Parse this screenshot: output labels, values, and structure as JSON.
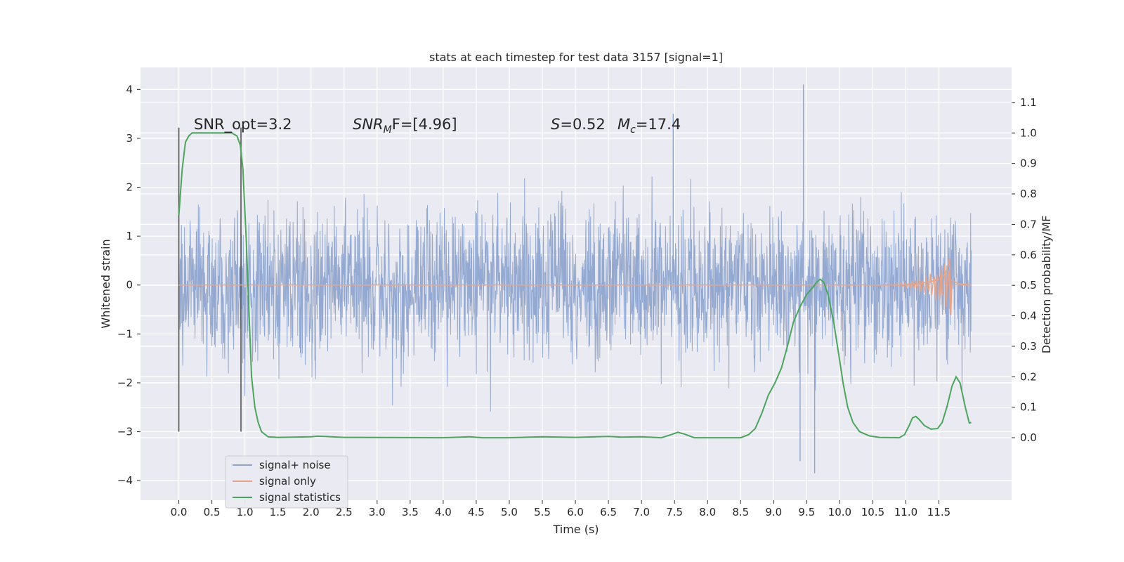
{
  "chart_data": {
    "type": "line",
    "title": "stats at each timestep for test data 3157 [signal=1]",
    "xlabel": "Time (s)",
    "ylabel": "Whitened strain",
    "ylabel_right": "Detection probability/MF",
    "xlim": [
      -0.58,
      12.6
    ],
    "ylim": [
      -4.4,
      4.45
    ],
    "ylim_right": [
      -0.205,
      1.215
    ],
    "x_ticks": [
      0.0,
      0.5,
      1.0,
      1.5,
      2.0,
      2.5,
      3.0,
      3.5,
      4.0,
      4.5,
      5.0,
      5.5,
      6.0,
      6.5,
      7.0,
      7.5,
      8.0,
      8.5,
      9.0,
      9.5,
      10.0,
      10.5,
      11.0,
      11.5
    ],
    "x_tick_labels": [
      "0.0",
      "0.5",
      "1.0",
      "1.5",
      "2.0",
      "2.5",
      "3.0",
      "3.5",
      "4.0",
      "4.5",
      "5.0",
      "5.5",
      "6.0",
      "6.5",
      "7.0",
      "7.5",
      "8.0",
      "8.5",
      "9.0",
      "9.5",
      "10.0",
      "10.5",
      "11.0",
      "11.5"
    ],
    "y_ticks": [
      -4,
      -3,
      -2,
      -1,
      0,
      1,
      2,
      3,
      4
    ],
    "y_tick_labels": [
      "−4",
      "−3",
      "−2",
      "−1",
      "0",
      "1",
      "2",
      "3",
      "4"
    ],
    "y_ticks_right": [
      0.0,
      0.1,
      0.2,
      0.3,
      0.4,
      0.5,
      0.6,
      0.7,
      0.8,
      0.9,
      1.0,
      1.1
    ],
    "y_tick_labels_right": [
      "0.0",
      "0.1",
      "0.2",
      "0.3",
      "0.4",
      "0.5",
      "0.6",
      "0.7",
      "0.8",
      "0.9",
      "1.0",
      "1.1"
    ],
    "grid": true,
    "legend_position": "lower-left",
    "annotations": {
      "snr_opt": "SNR_opt=3.2",
      "snr_mf_main": "SNR",
      "snr_mf_sub": "M",
      "snr_mf_rest": "F=[4.96]",
      "s_main": "S",
      "s_rest": "=0.52",
      "mc_main": "M",
      "mc_sub": "c",
      "mc_rest": "=17.4"
    },
    "vertical_lines": [
      0.0,
      0.94
    ],
    "series": [
      {
        "name": "signal+ noise",
        "color": "#8fa5cf",
        "description_values": {
          "x_range": [
            0.0,
            11.99
          ],
          "envelope_typical": [
            -2.0,
            2.2
          ],
          "max": 4.1,
          "min": -3.85
        }
      },
      {
        "name": "signal only",
        "color": "#e6a48a",
        "chirp_points": [
          [
            0.0,
            0.0
          ],
          [
            11.0,
            0.0
          ],
          [
            11.2,
            0.03
          ],
          [
            11.4,
            0.08
          ],
          [
            11.5,
            0.12
          ],
          [
            11.6,
            0.22
          ],
          [
            11.64,
            0.4
          ],
          [
            11.66,
            0.55
          ],
          [
            11.68,
            -0.62
          ],
          [
            11.7,
            0.1
          ],
          [
            11.8,
            0.03
          ],
          [
            11.99,
            0.0
          ]
        ]
      },
      {
        "name": "signal statistics",
        "color": "#4ca55c",
        "points": [
          [
            0.0,
            0.73
          ],
          [
            0.05,
            0.88
          ],
          [
            0.1,
            0.97
          ],
          [
            0.15,
            0.99
          ],
          [
            0.2,
            1.0
          ],
          [
            0.3,
            1.0
          ],
          [
            0.5,
            1.0
          ],
          [
            0.7,
            1.0
          ],
          [
            0.8,
            1.0
          ],
          [
            0.88,
            0.99
          ],
          [
            0.93,
            0.96
          ],
          [
            0.97,
            0.88
          ],
          [
            1.02,
            0.65
          ],
          [
            1.06,
            0.42
          ],
          [
            1.1,
            0.2
          ],
          [
            1.15,
            0.1
          ],
          [
            1.2,
            0.05
          ],
          [
            1.25,
            0.02
          ],
          [
            1.35,
            0.003
          ],
          [
            1.5,
            0.001
          ],
          [
            2.0,
            0.003
          ],
          [
            2.1,
            0.005
          ],
          [
            2.2,
            0.004
          ],
          [
            2.5,
            0.001
          ],
          [
            4.0,
            0.0
          ],
          [
            4.4,
            0.003
          ],
          [
            4.6,
            0.0
          ],
          [
            5.0,
            0.0
          ],
          [
            5.5,
            0.003
          ],
          [
            6.0,
            0.001
          ],
          [
            6.5,
            0.004
          ],
          [
            6.7,
            0.002
          ],
          [
            7.0,
            0.003
          ],
          [
            7.3,
            0.0
          ],
          [
            7.45,
            0.01
          ],
          [
            7.55,
            0.018
          ],
          [
            7.65,
            0.012
          ],
          [
            7.8,
            0.0
          ],
          [
            8.0,
            0.0
          ],
          [
            8.5,
            0.0
          ],
          [
            8.62,
            0.01
          ],
          [
            8.72,
            0.03
          ],
          [
            8.82,
            0.08
          ],
          [
            8.92,
            0.14
          ],
          [
            9.02,
            0.18
          ],
          [
            9.12,
            0.23
          ],
          [
            9.22,
            0.31
          ],
          [
            9.3,
            0.38
          ],
          [
            9.4,
            0.43
          ],
          [
            9.5,
            0.47
          ],
          [
            9.58,
            0.49
          ],
          [
            9.65,
            0.51
          ],
          [
            9.7,
            0.52
          ],
          [
            9.76,
            0.51
          ],
          [
            9.82,
            0.47
          ],
          [
            9.9,
            0.39
          ],
          [
            9.98,
            0.28
          ],
          [
            10.05,
            0.18
          ],
          [
            10.12,
            0.1
          ],
          [
            10.2,
            0.05
          ],
          [
            10.3,
            0.02
          ],
          [
            10.45,
            0.006
          ],
          [
            10.6,
            0.001
          ],
          [
            10.9,
            0.0
          ],
          [
            10.98,
            0.01
          ],
          [
            11.05,
            0.04
          ],
          [
            11.1,
            0.065
          ],
          [
            11.15,
            0.07
          ],
          [
            11.2,
            0.06
          ],
          [
            11.28,
            0.04
          ],
          [
            11.38,
            0.028
          ],
          [
            11.48,
            0.03
          ],
          [
            11.55,
            0.05
          ],
          [
            11.62,
            0.1
          ],
          [
            11.7,
            0.17
          ],
          [
            11.76,
            0.2
          ],
          [
            11.82,
            0.18
          ],
          [
            11.9,
            0.1
          ],
          [
            11.96,
            0.048
          ],
          [
            11.99,
            0.05
          ]
        ]
      }
    ]
  }
}
